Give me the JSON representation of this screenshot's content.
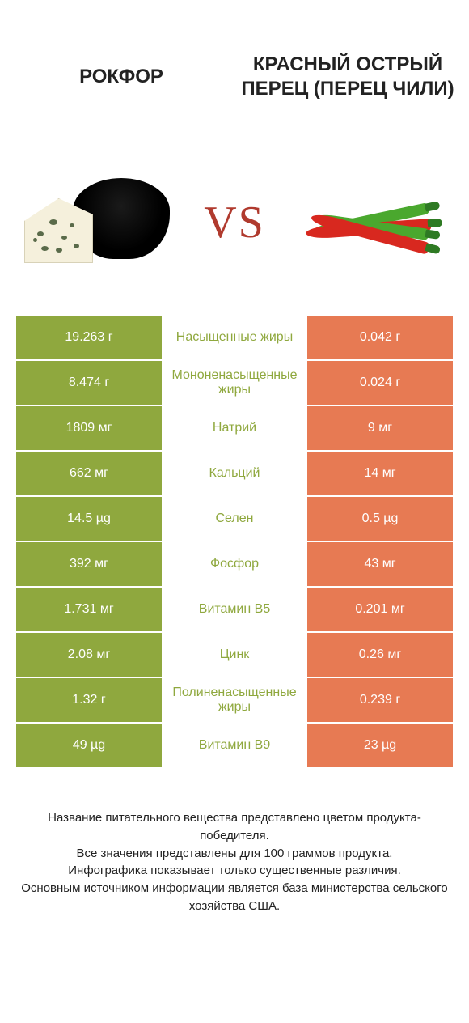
{
  "titles": {
    "left": "РОКФОР",
    "right": "КРАСНЫЙ ОСТРЫЙ ПЕРЕЦ (ПЕРЕЦ ЧИЛИ)"
  },
  "vs_label": "VS",
  "colors": {
    "left_bg": "#8fa83e",
    "right_bg": "#e77a53",
    "left_text": "#8fa83e",
    "right_text": "#e77a53",
    "vs": "#b03a2e",
    "chili_red": "#d8281f",
    "chili_green": "#4aa82e",
    "stem_green": "#2e7a23",
    "cheese_body": "#f5f0dc"
  },
  "rows": [
    {
      "left": "19.263 г",
      "mid": "Насыщенные жиры",
      "right": "0.042 г",
      "winner": "left"
    },
    {
      "left": "8.474 г",
      "mid": "Мононенасыщенные жиры",
      "right": "0.024 г",
      "winner": "left"
    },
    {
      "left": "1809 мг",
      "mid": "Натрий",
      "right": "9 мг",
      "winner": "left"
    },
    {
      "left": "662 мг",
      "mid": "Кальций",
      "right": "14 мг",
      "winner": "left"
    },
    {
      "left": "14.5 µg",
      "mid": "Селен",
      "right": "0.5 µg",
      "winner": "left"
    },
    {
      "left": "392 мг",
      "mid": "Фосфор",
      "right": "43 мг",
      "winner": "left"
    },
    {
      "left": "1.731 мг",
      "mid": "Витамин B5",
      "right": "0.201 мг",
      "winner": "left"
    },
    {
      "left": "2.08 мг",
      "mid": "Цинк",
      "right": "0.26 мг",
      "winner": "left"
    },
    {
      "left": "1.32 г",
      "mid": "Полиненасыщенные жиры",
      "right": "0.239 г",
      "winner": "left"
    },
    {
      "left": "49 µg",
      "mid": "Витамин B9",
      "right": "23 µg",
      "winner": "left"
    }
  ],
  "footer": {
    "line1": "Название питательного вещества представлено цветом продукта-победителя.",
    "line2": "Все значения представлены для 100 граммов продукта.",
    "line3": "Инфографика показывает только существенные различия.",
    "line4": "Основным источником информации является база министерства сельского хозяйства США."
  }
}
